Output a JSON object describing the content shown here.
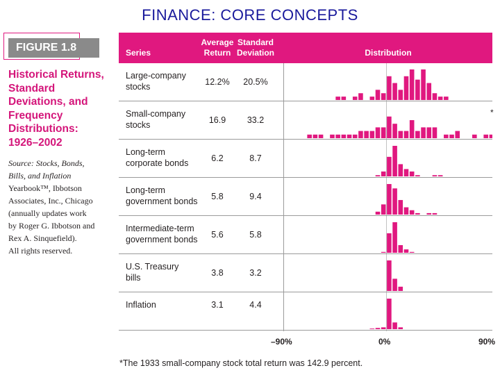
{
  "slide_title": "FINANCE: CORE CONCEPTS",
  "figure": {
    "label": "FIGURE 1.8",
    "title_lines": [
      "Historical Returns,",
      "Standard",
      "Deviations, and",
      "Frequency",
      "Distributions:",
      "1926–2002"
    ],
    "source_lines": [
      {
        "text": "Source: Stocks, Bonds,",
        "italic": true
      },
      {
        "text": "Bills, and Inflation",
        "italic": true
      },
      {
        "text": "Yearbook™, Ibbotson",
        "italic": false
      },
      {
        "text": "Associates, Inc., Chicago",
        "italic": false
      },
      {
        "text": "(annually updates work",
        "italic": false
      },
      {
        "text": "by Roger G. Ibbotson and",
        "italic": false
      },
      {
        "text": "Rex A. Sinquefield).",
        "italic": false
      },
      {
        "text": "All rights reserved.",
        "italic": false
      }
    ]
  },
  "table": {
    "headers": {
      "series": "Series",
      "avg_return": [
        "Average",
        "Return"
      ],
      "std_dev": [
        "Standard",
        "Deviation"
      ],
      "distribution": "Distribution"
    },
    "rows": [
      {
        "name": [
          "Large-company",
          "stocks"
        ],
        "avg_return": "12.2%",
        "std_dev": "20.5%"
      },
      {
        "name": [
          "Small-company",
          "stocks"
        ],
        "avg_return": "16.9",
        "std_dev": "33.2"
      },
      {
        "name": [
          "Long-term",
          "corporate bonds"
        ],
        "avg_return": "6.2",
        "std_dev": "8.7"
      },
      {
        "name": [
          "Long-term",
          "government bonds"
        ],
        "avg_return": "5.8",
        "std_dev": "9.4"
      },
      {
        "name": [
          "Intermediate-term",
          "government bonds"
        ],
        "avg_return": "5.6",
        "std_dev": "5.8"
      },
      {
        "name": [
          "U.S. Treasury",
          "bills"
        ],
        "avg_return": "3.8",
        "std_dev": "3.2"
      },
      {
        "name": [
          "Inflation",
          ""
        ],
        "avg_return": "3.1",
        "std_dev": "4.4"
      }
    ],
    "asterisk": "*",
    "axis_labels": {
      "min": "–90%",
      "mid": "0%",
      "max": "90%"
    }
  },
  "colors": {
    "accent": "#e0187f",
    "title_blue": "#1a1a9c",
    "gray_label": "#8a8a8a"
  },
  "chart_data": {
    "type": "bar",
    "x_axis": {
      "min": -90,
      "max": 90,
      "bin_width": 5,
      "tick_labels": [
        "–90%",
        "0%",
        "90%"
      ]
    },
    "value_unit": "years (frequency count, estimated)",
    "series": [
      {
        "name": "Large-company stocks",
        "bins": [
          [
            -45,
            1
          ],
          [
            -40,
            1
          ],
          [
            -30,
            1
          ],
          [
            -25,
            2
          ],
          [
            -15,
            1
          ],
          [
            -10,
            3
          ],
          [
            -5,
            2
          ],
          [
            0,
            7
          ],
          [
            5,
            5
          ],
          [
            10,
            3
          ],
          [
            15,
            7
          ],
          [
            20,
            9
          ],
          [
            25,
            6
          ],
          [
            30,
            9
          ],
          [
            35,
            5
          ],
          [
            40,
            2
          ],
          [
            45,
            1
          ],
          [
            50,
            1
          ]
        ]
      },
      {
        "name": "Small-company stocks",
        "bins": [
          [
            -70,
            1
          ],
          [
            -65,
            1
          ],
          [
            -60,
            1
          ],
          [
            -50,
            1
          ],
          [
            -45,
            1
          ],
          [
            -40,
            1
          ],
          [
            -35,
            1
          ],
          [
            -30,
            1
          ],
          [
            -25,
            2
          ],
          [
            -20,
            2
          ],
          [
            -15,
            2
          ],
          [
            -10,
            3
          ],
          [
            -5,
            3
          ],
          [
            0,
            6
          ],
          [
            5,
            4
          ],
          [
            10,
            2
          ],
          [
            15,
            2
          ],
          [
            20,
            5
          ],
          [
            25,
            2
          ],
          [
            30,
            3
          ],
          [
            35,
            3
          ],
          [
            40,
            3
          ],
          [
            50,
            1
          ],
          [
            55,
            1
          ],
          [
            60,
            2
          ],
          [
            75,
            1
          ],
          [
            85,
            1
          ],
          [
            90,
            1
          ]
        ]
      },
      {
        "name": "Long-term corporate bonds",
        "bins": [
          [
            -10,
            1
          ],
          [
            -5,
            4
          ],
          [
            0,
            16
          ],
          [
            5,
            25
          ],
          [
            10,
            10
          ],
          [
            15,
            6
          ],
          [
            20,
            4
          ],
          [
            25,
            1
          ],
          [
            40,
            1
          ],
          [
            45,
            1
          ]
        ]
      },
      {
        "name": "Long-term government bonds",
        "bins": [
          [
            -10,
            2
          ],
          [
            -5,
            7
          ],
          [
            0,
            21
          ],
          [
            5,
            18
          ],
          [
            10,
            10
          ],
          [
            15,
            5
          ],
          [
            20,
            3
          ],
          [
            25,
            1
          ],
          [
            35,
            1
          ],
          [
            40,
            1
          ]
        ]
      },
      {
        "name": "Intermediate-term government bonds",
        "bins": [
          [
            -5,
            1
          ],
          [
            0,
            23
          ],
          [
            5,
            36
          ],
          [
            10,
            9
          ],
          [
            15,
            4
          ],
          [
            20,
            1
          ]
        ]
      },
      {
        "name": "U.S. Treasury bills",
        "bins": [
          [
            0,
            50
          ],
          [
            5,
            20
          ],
          [
            10,
            7
          ]
        ]
      },
      {
        "name": "Inflation",
        "bins": [
          [
            -15,
            1
          ],
          [
            -10,
            2
          ],
          [
            -5,
            3
          ],
          [
            0,
            50
          ],
          [
            5,
            11
          ],
          [
            10,
            3
          ]
        ]
      }
    ]
  }
}
